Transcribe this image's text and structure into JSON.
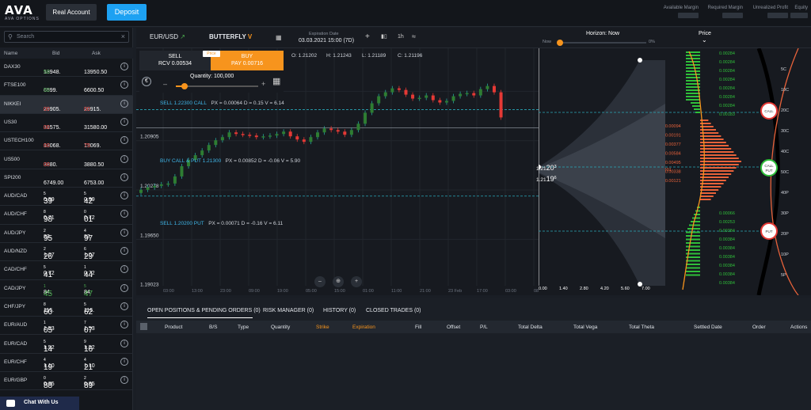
{
  "brand": {
    "logo": "AVA",
    "sub": "AVA OPTIONS"
  },
  "header": {
    "real_account": "Real Account",
    "deposit": "Deposit",
    "account": [
      {
        "label": "Available Margin"
      },
      {
        "label": "Required Margin"
      },
      {
        "label": "Unrealized Profit"
      },
      {
        "label": "Equity"
      }
    ]
  },
  "sidebar": {
    "search_placeholder": "Search",
    "clear": "×",
    "cols": {
      "name": "Name",
      "bid": "Bid",
      "ask": "Ask"
    },
    "rows": [
      {
        "name": "DAX30",
        "bid": "13948.",
        "bid_tail": "50",
        "ask": "13950.50",
        "bid_col": "#4caf50",
        "ask_col": "#fff"
      },
      {
        "name": "FTSE100",
        "bid": "6599.",
        "bid_tail": "50",
        "ask": "6600.50",
        "bid_col": "#4caf50",
        "ask_col": "#fff"
      },
      {
        "name": "NIKKEI",
        "bid": "29905.",
        "bid_tail": "00",
        "ask": "29915.",
        "ask_tail": "00",
        "bid_col": "#e53935",
        "ask_col": "#e53935",
        "hl": true
      },
      {
        "name": "US30",
        "bid": "31575.",
        "bid_tail": "00",
        "ask": "31580.00",
        "bid_col": "#e53935",
        "ask_col": "#fff"
      },
      {
        "name": "USTECH100",
        "bid": "13068.",
        "bid_tail": "00",
        "ask": "13069.",
        "ask_tail": "75",
        "bid_col": "#e53935",
        "ask_col": "#e53935"
      },
      {
        "name": "US500",
        "bid": "3880.",
        "bid_tail": "00",
        "ask": "3880.50",
        "bid_col": "#e53935",
        "ask_col": "#fff"
      },
      {
        "name": "SPI200",
        "bid": "6749.00",
        "ask": "6753.00"
      },
      {
        "name": "AUD/CAD",
        "bid": "0.99",
        "bid_big": "39",
        "bid_sup": "5",
        "ask": "0.99",
        "ask_big": "42",
        "ask_sup": "5"
      },
      {
        "name": "AUD/CHF",
        "bid": "0.71",
        "bid_big": "98",
        "bid_sup": "8",
        "ask": "0.72",
        "ask_big": "01",
        "ask_sup": "0"
      },
      {
        "name": "AUD/JPY",
        "bid": "83.",
        "bid_big": "95",
        "bid_sup": "2",
        "ask": "83.",
        "ask_big": "97",
        "ask_sup": "4"
      },
      {
        "name": "AUD/NZD",
        "bid": "1.07",
        "bid_big": "26",
        "bid_sup": "2",
        "ask": "1.07",
        "ask_big": "29",
        "ask_sup": "6"
      },
      {
        "name": "CAD/CHF",
        "bid": "0.72",
        "bid_big": "41",
        "bid_sup": "5",
        "ask": "0.72",
        "ask_big": "44",
        "ask_sup": "1"
      },
      {
        "name": "CAD/JPY",
        "bid": "84.",
        "bid_big": "45",
        "bid_sup": "1",
        "ask": "84.",
        "ask_big": "47",
        "ask_sup": "5",
        "bid_col": "#4caf50",
        "ask_col": "#4caf50"
      },
      {
        "name": "CHF/JPY",
        "bid": "116.",
        "bid_big": "60",
        "bid_sup": "8",
        "ask": "116.",
        "ask_big": "62",
        "ask_sup": "5"
      },
      {
        "name": "EUR/AUD",
        "bid": "1.53",
        "bid_big": "05",
        "bid_sup": "1",
        "ask": "1.53",
        "ask_big": "07",
        "ask_sup": "7"
      },
      {
        "name": "EUR/CAD",
        "bid": "1.52",
        "bid_big": "14",
        "bid_sup": "5",
        "ask": "1.52",
        "ask_big": "16",
        "ask_sup": "9"
      },
      {
        "name": "EUR/CHF",
        "bid": "1.10",
        "bid_big": "19",
        "bid_sup": "4",
        "ask": "1.10",
        "ask_big": "21",
        "ask_sup": "4"
      },
      {
        "name": "EUR/GBP",
        "bid": "0.85",
        "bid_big": "88",
        "bid_sup": "0",
        "ask": "0.85",
        "ask_big": "89",
        "ask_sup": "2"
      }
    ],
    "chat": "Chat With Us"
  },
  "toolbar": {
    "pair": "EUR/USD",
    "strategy": "BUTTERFLY",
    "expiry_label": "Expiration Date",
    "expiry": "03.03.2021 15:00 (7D)",
    "tf": "1h",
    "horizon_label": "Horizon: Now",
    "horizon_now": "Now",
    "horizon_pct": "0%",
    "price_label": "Price"
  },
  "trade_box": {
    "sell": "SELL",
    "rcv": "RCV 0.00534",
    "price_tag": "Price",
    "buy": "BUY",
    "pay": "PAY 0.00716",
    "qty_label": "Quantity: 100,000",
    "currency": "€",
    "minus": "–",
    "plus": "+"
  },
  "ohlc": {
    "o": "O: 1.21202",
    "h": "H: 1.21243",
    "l": "L: 1.21189",
    "c": "C: 1.21196"
  },
  "legs": [
    {
      "label": "SELL 1.22300 CALL",
      "info": "PX = 0.00064 D = 0.15 V = 6.14"
    },
    {
      "label": "BUY CALL & PUT 1.21300",
      "info": "PX = 0.00852 D = -0.06 V = 5.90"
    },
    {
      "label": "SELL 1.20200 PUT",
      "info": "PX = 0.00071 D = -0.16 V = 6.11"
    }
  ],
  "yaxis": [
    "1.22159",
    "1.21532",
    "1.20905",
    "1.20278",
    "1.19650",
    "1.19023"
  ],
  "xaxis": [
    "03:00",
    "13:00",
    "23:00",
    "09:00",
    "19:00",
    "05:00",
    "15:00",
    "01:00",
    "11:00",
    "21:00",
    "23 Feb",
    "17:00",
    "03:00",
    "08:00"
  ],
  "cur_price": {
    "ask": "1.21",
    "ask_big": "20",
    "ask_sup": "3",
    "bid": "1.21",
    "bid_big": "19",
    "bid_sup": "6"
  },
  "cone_axis": [
    "0.00",
    "1.40",
    "2.80",
    "4.20",
    "5.60",
    "7.00"
  ],
  "ladder_green_top": [
    "0.00284",
    "0.00284",
    "0.00284",
    "0.00284",
    "0.00284",
    "0.00284",
    "0.00284",
    "0.00183"
  ],
  "ladder_red": [
    "-0.00094",
    "-0.00191",
    "-0.00377",
    "-0.00584",
    "-0.00495",
    "-0.00338",
    "-0.00121"
  ],
  "ladder_mid": "-0.00891",
  "ladder_green_bot": [
    "0.00066",
    "0.00253",
    "0.00384",
    "0.00384",
    "0.00384",
    "0.00384",
    "0.00384",
    "0.00384",
    "0.00384"
  ],
  "vol_axis": [
    "5C",
    "10C",
    "20C",
    "30C",
    "40C",
    "50C",
    "40P",
    "30P",
    "20P",
    "10P",
    "5P"
  ],
  "markers": {
    "call": "CALL",
    "callput_1": "CALL",
    "callput_2": "PUT",
    "put": "PUT"
  },
  "bottom": {
    "tabs": [
      "OPEN POSITIONS & PENDING ORDERS (0)",
      "RISK MANAGER (0)",
      "HISTORY (0)",
      "CLOSED TRADES (0)"
    ],
    "cols": [
      "Product",
      "B/S",
      "Type",
      "Quantity",
      "Strike",
      "Expiration",
      "Fill",
      "Offset",
      "P/L",
      "Total Delta",
      "Total Vega",
      "Total Theta",
      "Settled Date",
      "Order",
      "Actions"
    ]
  },
  "chart_data": {
    "type": "candlestick",
    "pair": "EUR/USD",
    "timeframe": "1h",
    "ylim": [
      1.1902,
      1.2216
    ],
    "yticks": [
      1.22159,
      1.21532,
      1.20905,
      1.20278,
      1.1965
    ],
    "close_path": [
      1.2028,
      1.2031,
      1.2033,
      1.2035,
      1.2036,
      1.2045,
      1.2058,
      1.2066,
      1.2072,
      1.2078,
      1.2085,
      1.2091,
      1.2095,
      1.2101,
      1.2099,
      1.2098,
      1.2097,
      1.2095,
      1.2096,
      1.2097,
      1.2099,
      1.2102,
      1.2096,
      1.2092,
      1.2089,
      1.2095,
      1.2101,
      1.2106,
      1.2104,
      1.2102,
      1.2098,
      1.2104,
      1.2112,
      1.2126,
      1.2138,
      1.2147,
      1.2152,
      1.2157,
      1.2155,
      1.2149,
      1.2144,
      1.2145,
      1.2148,
      1.2142,
      1.2139,
      1.2141,
      1.2147,
      1.215,
      1.2151,
      1.2148,
      1.2156,
      1.216,
      1.2152,
      1.212
    ],
    "strikes": {
      "sell_call": 1.223,
      "butterfly_center": 1.213,
      "sell_put": 1.202
    }
  }
}
